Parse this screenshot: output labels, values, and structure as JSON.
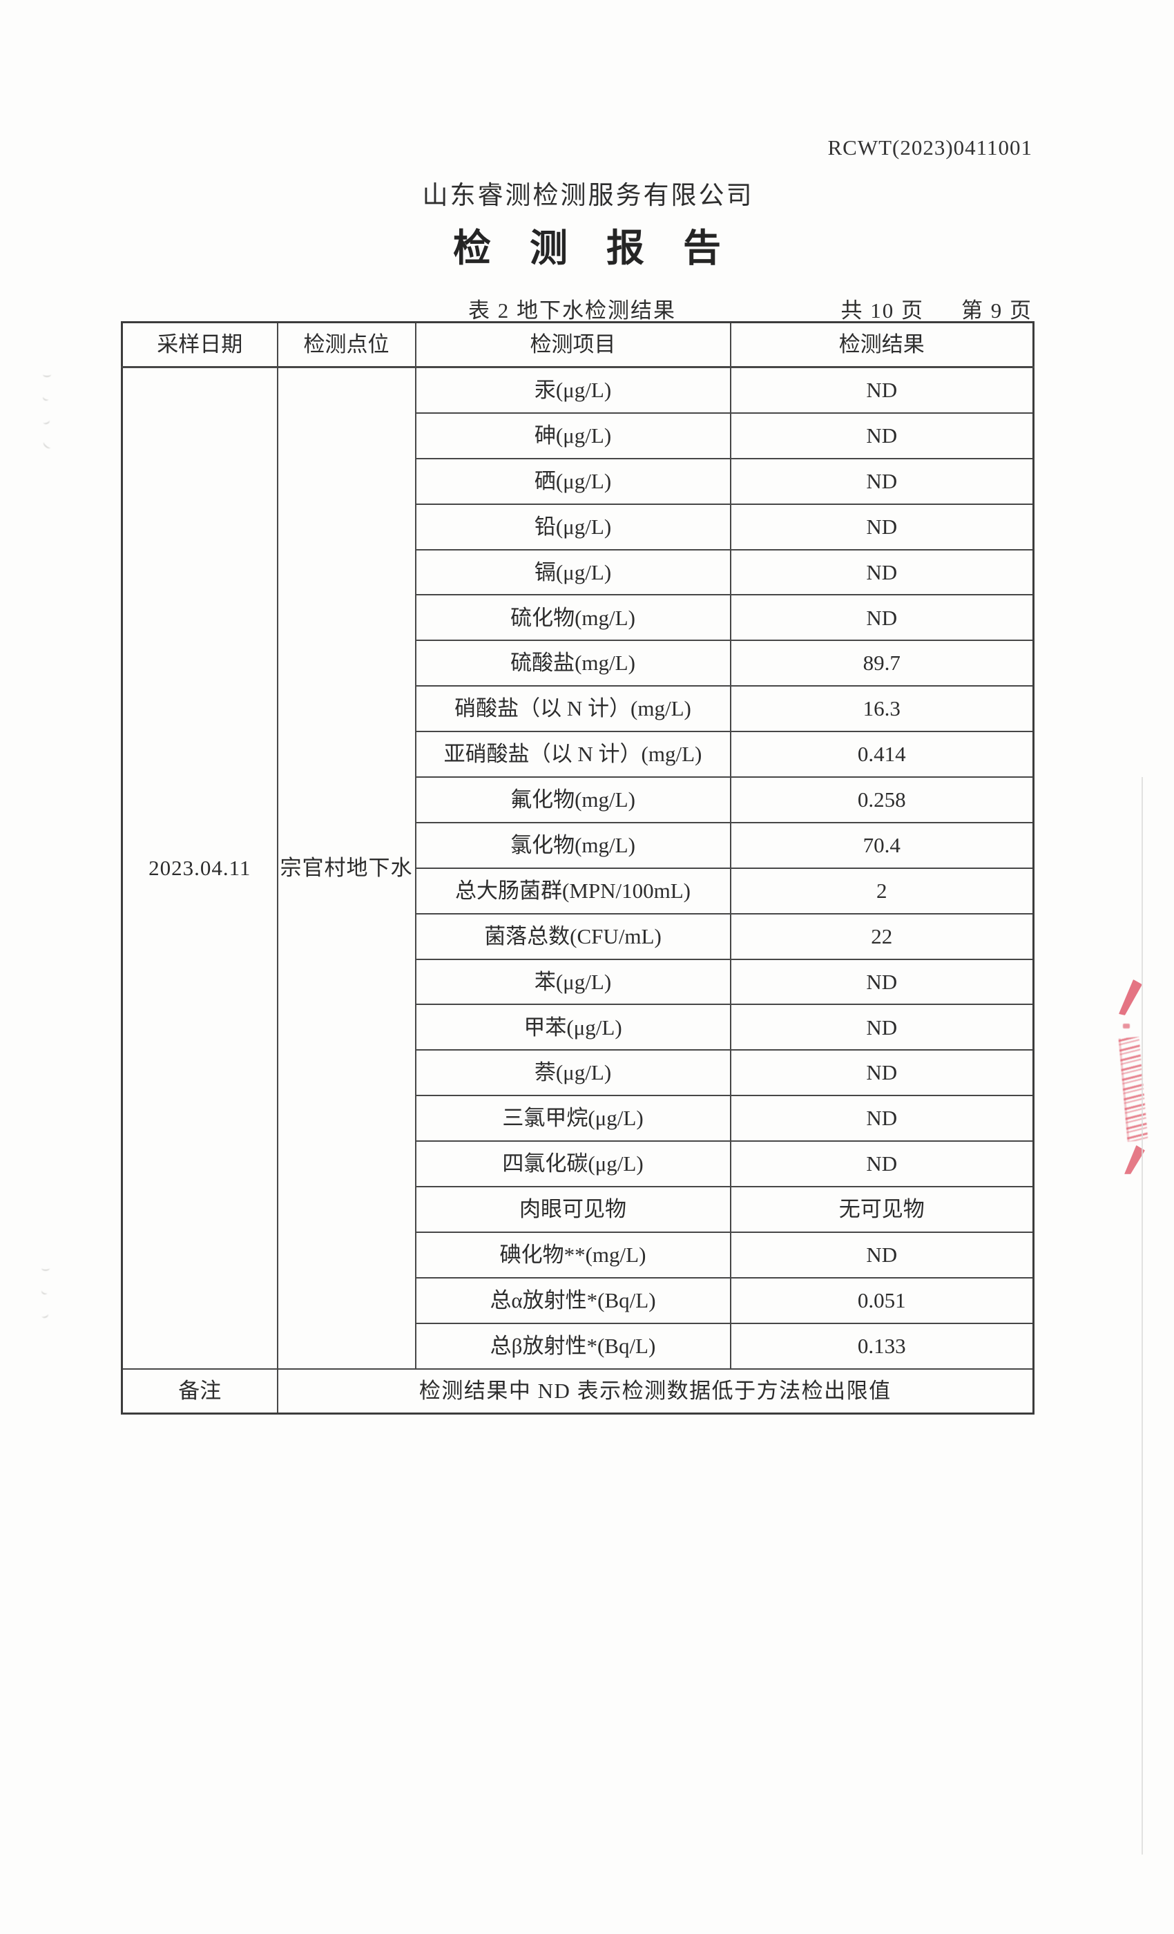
{
  "header": {
    "report_no": "RCWT(2023)0411001",
    "company": "山东睿测检测服务有限公司",
    "title": "检测报告"
  },
  "caption": {
    "table_caption": "表 2 地下水检测结果",
    "pages_total": "共 10 页",
    "page_current": "第 9 页"
  },
  "table": {
    "headers": [
      "采样日期",
      "检测点位",
      "检测项目",
      "检测结果"
    ],
    "sample_date": "2023.04.11",
    "sample_location": "宗官村地下水",
    "rows": [
      {
        "item": "汞(μg/L)",
        "result": "ND"
      },
      {
        "item": "砷(μg/L)",
        "result": "ND"
      },
      {
        "item": "硒(μg/L)",
        "result": "ND"
      },
      {
        "item": "铅(μg/L)",
        "result": "ND"
      },
      {
        "item": "镉(μg/L)",
        "result": "ND"
      },
      {
        "item": "硫化物(mg/L)",
        "result": "ND"
      },
      {
        "item": "硫酸盐(mg/L)",
        "result": "89.7"
      },
      {
        "item": "硝酸盐（以 N 计）(mg/L)",
        "result": "16.3"
      },
      {
        "item": "亚硝酸盐（以 N 计）(mg/L)",
        "result": "0.414"
      },
      {
        "item": "氟化物(mg/L)",
        "result": "0.258"
      },
      {
        "item": "氯化物(mg/L)",
        "result": "70.4"
      },
      {
        "item": "总大肠菌群(MPN/100mL)",
        "result": "2"
      },
      {
        "item": "菌落总数(CFU/mL)",
        "result": "22"
      },
      {
        "item": "苯(μg/L)",
        "result": "ND"
      },
      {
        "item": "甲苯(μg/L)",
        "result": "ND"
      },
      {
        "item": "萘(μg/L)",
        "result": "ND"
      },
      {
        "item": "三氯甲烷(μg/L)",
        "result": "ND"
      },
      {
        "item": "四氯化碳(μg/L)",
        "result": "ND"
      },
      {
        "item": "肉眼可见物",
        "result": "无可见物"
      },
      {
        "item": "碘化物**(mg/L)",
        "result": "ND"
      },
      {
        "item": "总α放射性*(Bq/L)",
        "result": "0.051"
      },
      {
        "item": "总β放射性*(Bq/L)",
        "result": "0.133"
      }
    ],
    "note_label": "备注",
    "note_text": "检测结果中 ND 表示检测数据低于方法检出限值"
  },
  "stamp": {
    "color": "#dd4e60"
  }
}
